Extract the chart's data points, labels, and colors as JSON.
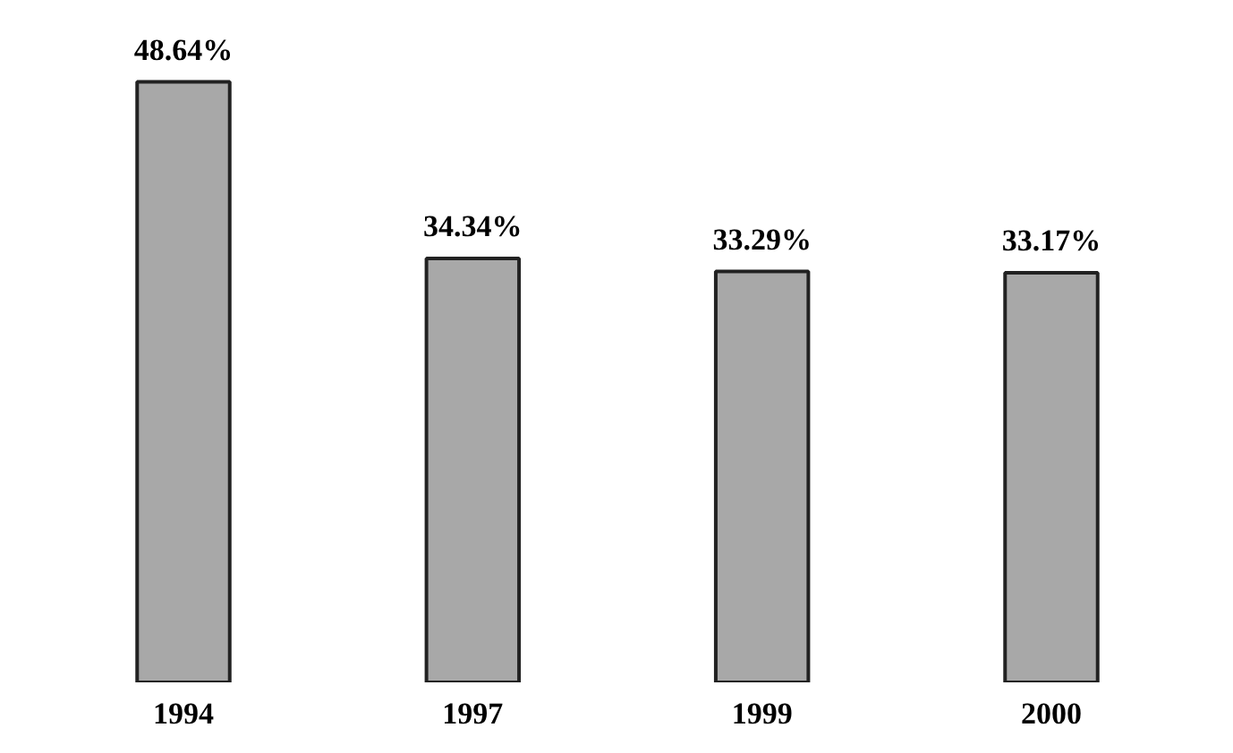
{
  "chart_data": {
    "type": "bar",
    "categories": [
      "1994",
      "1997",
      "1999",
      "2000"
    ],
    "values": [
      48.64,
      34.34,
      33.29,
      33.17
    ],
    "value_labels": [
      "48.64%",
      "34.34%",
      "33.29%",
      "33.17%"
    ],
    "color": "#a8a8a8"
  }
}
